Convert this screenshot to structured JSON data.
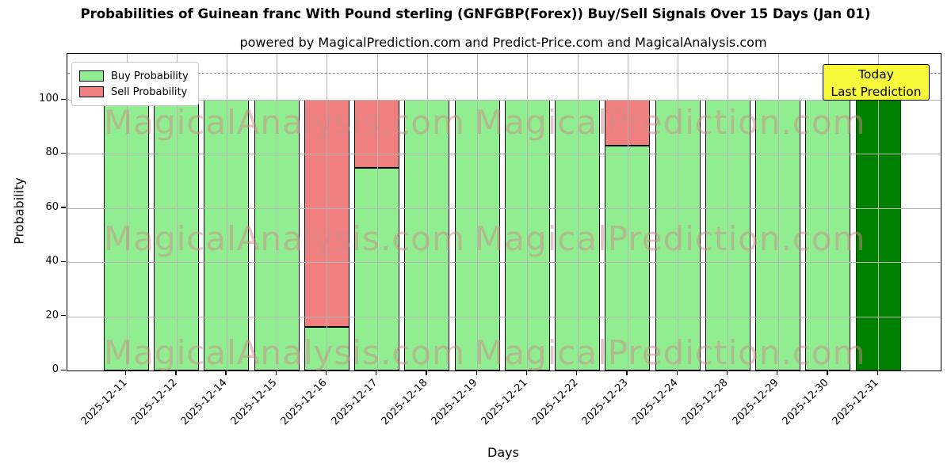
{
  "chart": {
    "title": "Probabilities of Guinean franc With Pound sterling (GNFGBP(Forex)) Buy/Sell Signals Over 15 Days (Jan 01)",
    "subtitle": "powered by MagicalPrediction.com and Predict-Price.com and MagicalAnalysis.com",
    "xlabel": "Days",
    "ylabel": "Probability"
  },
  "legend": {
    "items": [
      {
        "label": "Buy Probability",
        "color": "#90EE90"
      },
      {
        "label": "Sell Probability",
        "color": "#F08080"
      }
    ]
  },
  "annotation": {
    "line1": "Today",
    "line2": "Last Prediction",
    "bg_color": "#F9F93B"
  },
  "watermarks": {
    "left_text": "MagicalAnalysis.com",
    "right_text": "MagicalPrediction.com"
  },
  "chart_data": {
    "type": "bar",
    "stacked": true,
    "title": "Probabilities of Guinean franc With Pound sterling (GNFGBP(Forex)) Buy/Sell Signals Over 15 Days (Jan 01)",
    "subtitle": "powered by MagicalPrediction.com and Predict-Price.com and MagicalAnalysis.com",
    "xlabel": "Days",
    "ylabel": "Probability",
    "categories": [
      "2025-12-11",
      "2025-12-12",
      "2025-12-14",
      "2025-12-15",
      "2025-12-16",
      "2025-12-17",
      "2025-12-18",
      "2025-12-19",
      "2025-12-21",
      "2025-12-22",
      "2025-12-23",
      "2025-12-24",
      "2025-12-28",
      "2025-12-29",
      "2025-12-30",
      "2025-12-31"
    ],
    "series": [
      {
        "name": "Buy Probability",
        "color": "#90EE90",
        "values": [
          100,
          100,
          100,
          100,
          16,
          75,
          100,
          100,
          100,
          100,
          83,
          100,
          100,
          100,
          100,
          100
        ]
      },
      {
        "name": "Sell Probability",
        "color": "#F08080",
        "values": [
          0,
          0,
          0,
          0,
          84,
          25,
          0,
          0,
          0,
          0,
          17,
          0,
          0,
          0,
          0,
          0
        ]
      }
    ],
    "today_index": 15,
    "today_color": "#008000",
    "yticks": [
      0,
      20,
      40,
      60,
      80,
      100
    ],
    "ylim": [
      0,
      117
    ],
    "dashed_line_y": 110,
    "grid": true,
    "legend_position": "upper left"
  }
}
